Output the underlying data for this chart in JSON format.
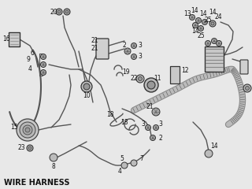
{
  "title": "WIRE HARNESS",
  "bg_color": "#e8e8e8",
  "text_color": "#111111",
  "line_color": "#333333",
  "title_fontsize": 7,
  "fig_width": 3.2,
  "fig_height": 2.4,
  "dpi": 100
}
